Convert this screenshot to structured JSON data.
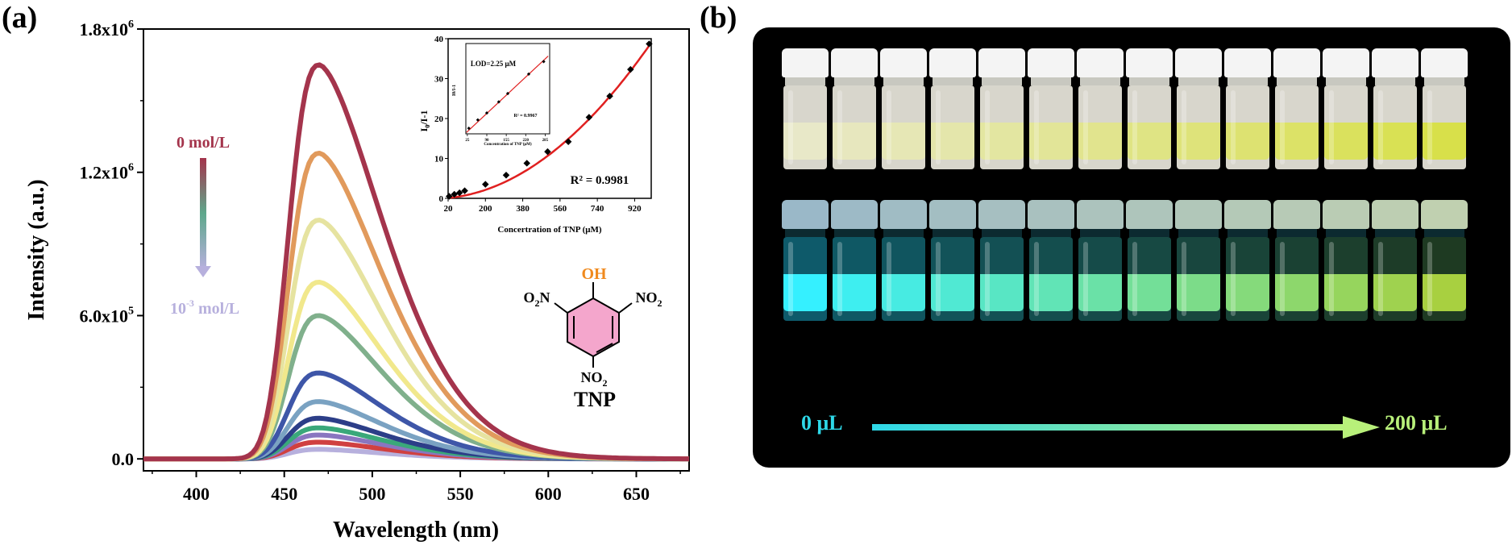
{
  "panel_a": {
    "label": "(a)",
    "legend_top": "0 mol/L",
    "legend_bottom": "10-3 mol/L",
    "molecule": {
      "name": "TNP",
      "oh_label": "OH",
      "no2_left": "O2N",
      "no2_right": "NO2",
      "no2_bottom": "NO2"
    },
    "colors": {
      "legend_top": "#a4344c",
      "legend_bottom": "#b7b0dd",
      "oh": "#f08a1e",
      "ring_fill": "#f4a6cc"
    }
  },
  "panel_b": {
    "label": "(b)",
    "arrow_start": "0 μL",
    "arrow_end": "200 μL",
    "colors": {
      "daylight_liquid_start": "#e8e8c8",
      "daylight_liquid_end": "#d8e04a",
      "uv_liquid_start": "#35f0ff",
      "uv_liquid_end": "#a8d040",
      "arrow_start": "#2ed8e8",
      "arrow_end": "#b8f07a"
    }
  },
  "chart_data": [
    {
      "type": "line",
      "xlabel": "Wavelength (nm)",
      "ylabel": "Intensity (a.u.)",
      "xlim": [
        370,
        680
      ],
      "ylim": [
        -50000,
        1800000
      ],
      "x_ticks": [
        400,
        450,
        500,
        550,
        600,
        650
      ],
      "y_ticks": [
        0,
        600000,
        1200000,
        1800000
      ],
      "y_tick_labels": [
        "0.0",
        "6.0x10^5",
        "1.2x10^6",
        "1.8x10^6"
      ],
      "peak_wavelength_nm": 470,
      "series": [
        {
          "color": "#a4344c",
          "peak": 1650000
        },
        {
          "color": "#e19a5c",
          "peak": 1280000
        },
        {
          "color": "#e6e3a0",
          "peak": 1000000
        },
        {
          "color": "#f1e88c",
          "peak": 740000
        },
        {
          "color": "#80b08c",
          "peak": 600000
        },
        {
          "color": "#3e56a8",
          "peak": 360000
        },
        {
          "color": "#7aa2c2",
          "peak": 240000
        },
        {
          "color": "#2c3e88",
          "peak": 170000
        },
        {
          "color": "#3aa87a",
          "peak": 130000
        },
        {
          "color": "#8a76c0",
          "peak": 100000
        },
        {
          "color": "#d04040",
          "peak": 70000
        },
        {
          "color": "#b7b0dd",
          "peak": 40000
        }
      ]
    },
    {
      "type": "scatter",
      "xlabel": "Concertration of TNP (μM)",
      "ylabel": "I0/I-1",
      "xlim": [
        20,
        1000
      ],
      "ylim": [
        0,
        40
      ],
      "x_ticks": [
        20,
        200,
        380,
        560,
        740,
        920
      ],
      "y_ticks": [
        0,
        10,
        20,
        30,
        40
      ],
      "annotation": "R² = 0.9981",
      "points": [
        [
          25,
          0.5
        ],
        [
          50,
          1.0
        ],
        [
          75,
          1.4
        ],
        [
          100,
          1.9
        ],
        [
          200,
          3.5
        ],
        [
          300,
          5.8
        ],
        [
          400,
          8.8
        ],
        [
          500,
          11.7
        ],
        [
          600,
          14.2
        ],
        [
          700,
          20.3
        ],
        [
          800,
          25.6
        ],
        [
          900,
          32.3
        ],
        [
          990,
          38.7
        ]
      ],
      "fit_color": "#e02020"
    },
    {
      "type": "scatter",
      "xlabel": "Concentration of TNP (μM)",
      "ylabel": "I0/I-1",
      "x_ticks": [
        "25",
        "90",
        "155",
        "220",
        "285"
      ],
      "annotations": [
        "LOD=2.25 μM",
        "R² = 0.9967"
      ],
      "points": [
        [
          30,
          0.4
        ],
        [
          60,
          1.0
        ],
        [
          90,
          1.5
        ],
        [
          130,
          2.3
        ],
        [
          160,
          2.9
        ],
        [
          230,
          4.3
        ],
        [
          280,
          5.2
        ]
      ],
      "fit_color": "#e02020"
    }
  ]
}
